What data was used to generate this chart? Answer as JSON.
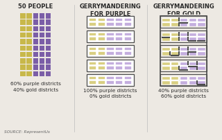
{
  "title1": "50 PEOPLE",
  "title2": "GERRYMANDERING\nFOR PURPLE",
  "title3": "GERRYMANDERING\nFOR GOLD",
  "caption1": "60% purple districts\n40% gold districts",
  "caption2": "100% purple districts\n0% gold districts",
  "caption3": "40% purple districts\n60% gold districts",
  "source": "SOURCE: RepresentUs",
  "purple": "#7B5EA7",
  "gold": "#C8B84A",
  "purple_light": "#C4AEDE",
  "gold_light": "#D9CF82",
  "bg": "#EDE9E3",
  "border": "#4A4A4A",
  "text_color": "#2A2A2A",
  "white": "#FFFFFF"
}
